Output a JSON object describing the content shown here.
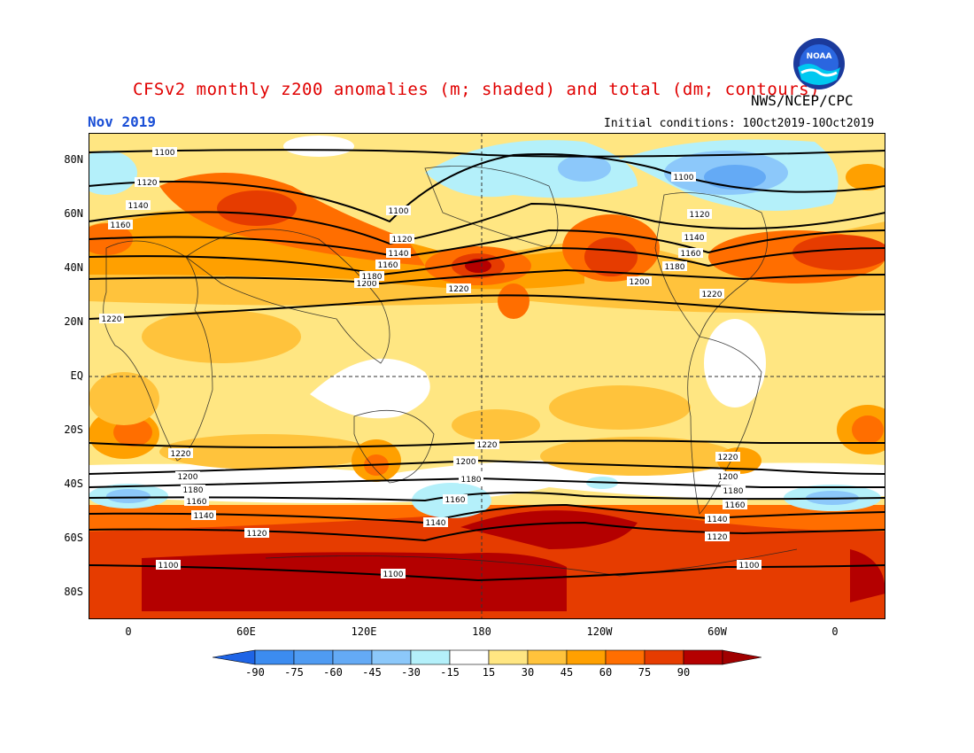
{
  "header": {
    "title": "CFSv2 monthly z200 anomalies (m; shaded) and total (dm; contours)",
    "agency": "NWS/NCEP/CPC",
    "valid_month": "Nov 2019",
    "initial_conditions": "Initial conditions: 10Oct2019-10Oct2019",
    "logo_text": "NOAA"
  },
  "axes": {
    "lat_labels": [
      "80N",
      "60N",
      "40N",
      "20N",
      "EQ",
      "20S",
      "40S",
      "60S",
      "80S"
    ],
    "lon_labels": [
      "0",
      "60E",
      "120E",
      "180",
      "120W",
      "60W",
      "0"
    ]
  },
  "contour_labels": [
    "1100",
    "1120",
    "1140",
    "1160",
    "1180",
    "1200",
    "1220"
  ],
  "colorbar": {
    "labels": [
      "-90",
      "-75",
      "-60",
      "-45",
      "-30",
      "-15",
      "15",
      "30",
      "45",
      "60",
      "75",
      "90"
    ],
    "colors": [
      "#1e64e6",
      "#3c8cf0",
      "#64aaf5",
      "#8cc8fa",
      "#b4f0fa",
      "#ffffff",
      "#ffe682",
      "#ffc33c",
      "#ffa000",
      "#ff6e00",
      "#e63c00",
      "#b40000",
      "#a00000"
    ]
  }
}
